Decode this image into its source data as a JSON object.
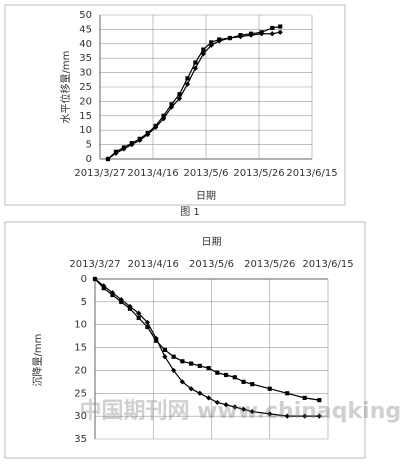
{
  "chart_data": [
    {
      "type": "line",
      "xlabel": "日期",
      "ylabel": "水平位移量/mm",
      "caption": "图 1",
      "xlim": [
        "2013/3/27",
        "2013/6/15"
      ],
      "xticks": [
        "2013/3/27",
        "2013/4/16",
        "2013/5/6",
        "2013/5/26",
        "2013/6/15"
      ],
      "ylim": [
        0,
        50
      ],
      "yticks": [
        0,
        5,
        10,
        15,
        20,
        25,
        30,
        35,
        40,
        45,
        50
      ],
      "grid": true,
      "y_inverted": false,
      "xaxis_position": "bottom",
      "x": [
        "2013/3/30",
        "2013/4/2",
        "2013/4/5",
        "2013/4/8",
        "2013/4/11",
        "2013/4/14",
        "2013/4/17",
        "2013/4/20",
        "2013/4/23",
        "2013/4/26",
        "2013/4/29",
        "2013/5/2",
        "2013/5/5",
        "2013/5/8",
        "2013/5/11",
        "2013/5/15",
        "2013/5/19",
        "2013/5/23",
        "2013/5/27",
        "2013/5/31",
        "2013/6/3"
      ],
      "series": [
        {
          "marker": "diamond",
          "color": "#000000",
          "values": [
            0,
            2,
            3.5,
            5,
            6.5,
            8.5,
            11,
            14,
            18,
            21,
            26,
            31.5,
            36.5,
            39.5,
            41,
            42,
            42.5,
            43,
            43.5,
            43.5,
            44
          ]
        },
        {
          "marker": "square",
          "color": "#000000",
          "values": [
            0,
            2.5,
            4,
            5.5,
            7,
            9,
            11.5,
            15,
            19,
            22.5,
            28,
            33.5,
            38,
            40.5,
            41.5,
            42,
            43,
            43.5,
            44,
            45.5,
            46
          ]
        }
      ]
    },
    {
      "type": "line",
      "xlabel": "日期",
      "ylabel": "沉降量/mm",
      "xlim": [
        "2013/3/27",
        "2013/6/15"
      ],
      "xticks": [
        "2013/3/27",
        "2013/4/16",
        "2013/5/6",
        "2013/5/26",
        "2013/6/15"
      ],
      "ylim": [
        0,
        35
      ],
      "yticks": [
        0,
        5,
        10,
        15,
        20,
        25,
        30,
        35
      ],
      "grid": true,
      "y_inverted": true,
      "xaxis_position": "top",
      "x": [
        "2013/3/27",
        "2013/3/30",
        "2013/4/2",
        "2013/4/5",
        "2013/4/8",
        "2013/4/11",
        "2013/4/14",
        "2013/4/17",
        "2013/4/20",
        "2013/4/23",
        "2013/4/26",
        "2013/4/29",
        "2013/5/2",
        "2013/5/5",
        "2013/5/8",
        "2013/5/11",
        "2013/5/14",
        "2013/5/17",
        "2013/5/20",
        "2013/5/26",
        "2013/6/1",
        "2013/6/7",
        "2013/6/12"
      ],
      "series": [
        {
          "marker": "diamond",
          "color": "#000000",
          "values": [
            0,
            1.5,
            3,
            4.5,
            6,
            7.5,
            9.5,
            13,
            17,
            20,
            22.5,
            24,
            25,
            26,
            27,
            27.5,
            28,
            28.5,
            29,
            29.5,
            30,
            30,
            30
          ]
        },
        {
          "marker": "square",
          "color": "#000000",
          "values": [
            0,
            2,
            3.5,
            5,
            6.5,
            8.5,
            10.5,
            13.5,
            15.5,
            17,
            18,
            18.5,
            19,
            19.5,
            20.5,
            21,
            21.5,
            22.5,
            23,
            24,
            25,
            26,
            26.5
          ]
        }
      ]
    }
  ],
  "watermark": "中国期刊网 www.chinaqking.com"
}
